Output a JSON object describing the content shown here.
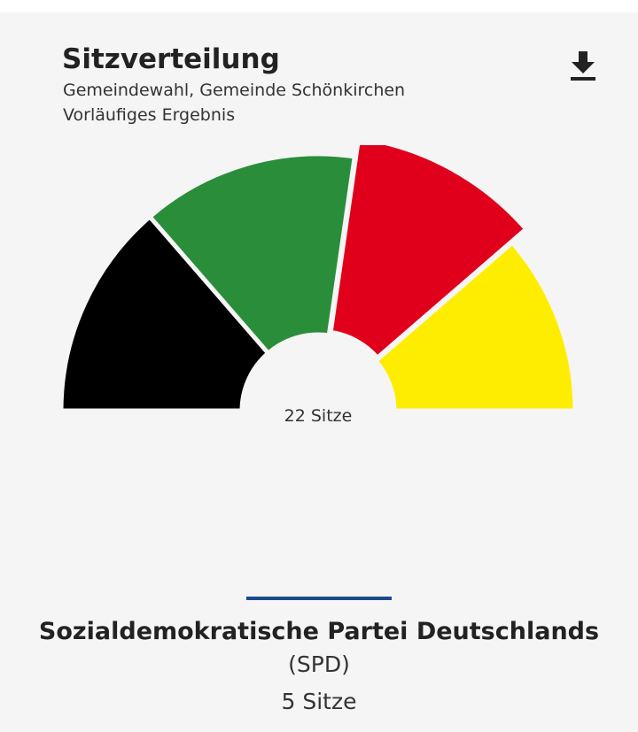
{
  "header": {
    "title": "Sitzverteilung",
    "subtitle": "Gemeindewahl, Gemeinde Schönkirchen",
    "status": "Vorläufiges Ergebnis"
  },
  "icons": {
    "download": "download-icon"
  },
  "chart_data": {
    "type": "pie",
    "variant": "semicircle-parliament",
    "total_label": "22 Sitze",
    "total_seats": 22,
    "selected_index": 2,
    "slices": [
      {
        "value": 6,
        "color": "#000000"
      },
      {
        "value": 6,
        "color": "#2a8d3a"
      },
      {
        "value": 5,
        "color": "#e0001b"
      },
      {
        "value": 5,
        "color": "#ffed00"
      }
    ]
  },
  "selection": {
    "party_name": "Sozialdemokratische Partei Deutschlands",
    "party_abbr": "(SPD)",
    "party_seats": "5 Sitze"
  }
}
